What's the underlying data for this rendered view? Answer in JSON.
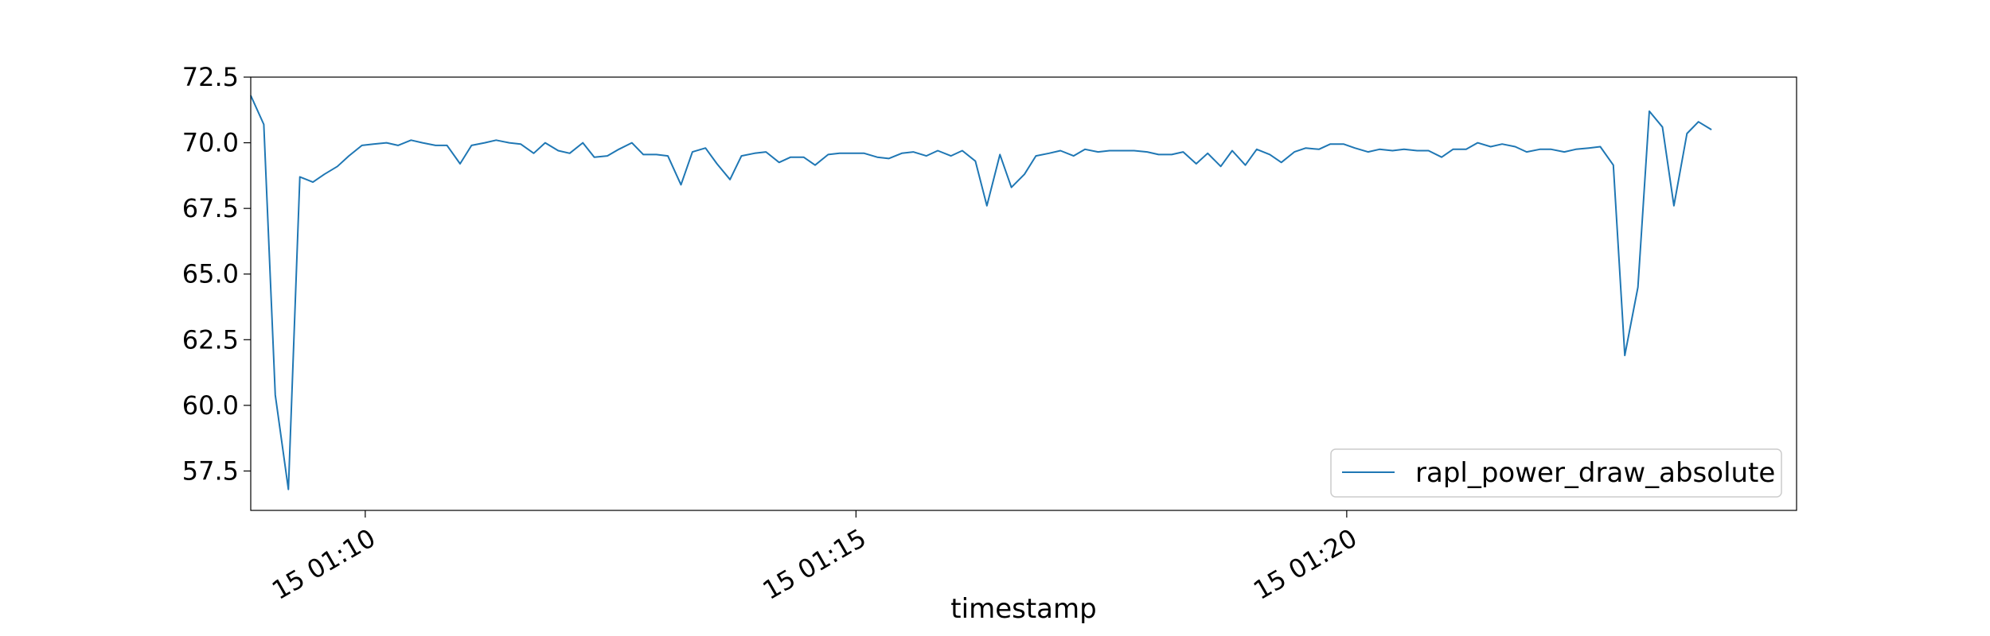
{
  "chart_data": {
    "type": "line",
    "title": "",
    "xlabel": "timestamp",
    "ylabel": "",
    "x_unit": "minutes",
    "x_range": [
      "01:08:50",
      "01:24:35"
    ],
    "ylim": [
      56.0,
      72.5
    ],
    "y_ticks": [
      57.5,
      60.0,
      62.5,
      65.0,
      67.5,
      70.0,
      72.5
    ],
    "y_tick_labels": [
      "57.5",
      "60.0",
      "62.5",
      "65.0",
      "67.5",
      "70.0",
      "72.5"
    ],
    "x_ticks": [
      "01:10:00",
      "01:15:00",
      "01:20:00"
    ],
    "x_tick_labels": [
      "15 01:10",
      "15 01:15",
      "15 01:20"
    ],
    "grid": false,
    "legend_position": "lower-right",
    "series": [
      {
        "name": "rapl_power_draw_absolute",
        "color": "#1f77b4",
        "points": [
          [
            "01:08:50",
            71.8
          ],
          [
            "01:08:58",
            70.7
          ],
          [
            "01:09:05",
            60.4
          ],
          [
            "01:09:13",
            56.8
          ],
          [
            "01:09:20",
            68.7
          ],
          [
            "01:09:28",
            68.5
          ],
          [
            "01:09:35",
            68.8
          ],
          [
            "01:09:43",
            69.1
          ],
          [
            "01:09:50",
            69.5
          ],
          [
            "01:09:58",
            69.9
          ],
          [
            "01:10:05",
            69.95
          ],
          [
            "01:10:13",
            70.0
          ],
          [
            "01:10:20",
            69.9
          ],
          [
            "01:10:28",
            70.1
          ],
          [
            "01:10:35",
            70.0
          ],
          [
            "01:10:43",
            69.9
          ],
          [
            "01:10:50",
            69.9
          ],
          [
            "01:10:58",
            69.2
          ],
          [
            "01:11:05",
            69.9
          ],
          [
            "01:11:13",
            70.0
          ],
          [
            "01:11:20",
            70.1
          ],
          [
            "01:11:28",
            70.0
          ],
          [
            "01:11:35",
            69.95
          ],
          [
            "01:11:43",
            69.6
          ],
          [
            "01:11:50",
            70.0
          ],
          [
            "01:11:58",
            69.7
          ],
          [
            "01:12:05",
            69.6
          ],
          [
            "01:12:13",
            70.0
          ],
          [
            "01:12:20",
            69.45
          ],
          [
            "01:12:28",
            69.5
          ],
          [
            "01:12:35",
            69.75
          ],
          [
            "01:12:43",
            70.0
          ],
          [
            "01:12:50",
            69.55
          ],
          [
            "01:12:58",
            69.55
          ],
          [
            "01:13:05",
            69.5
          ],
          [
            "01:13:13",
            68.4
          ],
          [
            "01:13:20",
            69.65
          ],
          [
            "01:13:28",
            69.8
          ],
          [
            "01:13:35",
            69.2
          ],
          [
            "01:13:43",
            68.6
          ],
          [
            "01:13:50",
            69.5
          ],
          [
            "01:13:58",
            69.6
          ],
          [
            "01:14:05",
            69.65
          ],
          [
            "01:14:13",
            69.25
          ],
          [
            "01:14:20",
            69.45
          ],
          [
            "01:14:28",
            69.45
          ],
          [
            "01:14:35",
            69.15
          ],
          [
            "01:14:43",
            69.55
          ],
          [
            "01:14:50",
            69.6
          ],
          [
            "01:14:58",
            69.6
          ],
          [
            "01:15:05",
            69.6
          ],
          [
            "01:15:13",
            69.45
          ],
          [
            "01:15:20",
            69.4
          ],
          [
            "01:15:28",
            69.6
          ],
          [
            "01:15:35",
            69.65
          ],
          [
            "01:15:43",
            69.5
          ],
          [
            "01:15:50",
            69.7
          ],
          [
            "01:15:58",
            69.5
          ],
          [
            "01:16:05",
            69.7
          ],
          [
            "01:16:13",
            69.3
          ],
          [
            "01:16:20",
            67.6
          ],
          [
            "01:16:28",
            69.55
          ],
          [
            "01:16:35",
            68.3
          ],
          [
            "01:16:43",
            68.8
          ],
          [
            "01:16:50",
            69.5
          ],
          [
            "01:16:58",
            69.6
          ],
          [
            "01:17:05",
            69.7
          ],
          [
            "01:17:13",
            69.5
          ],
          [
            "01:17:20",
            69.75
          ],
          [
            "01:17:28",
            69.65
          ],
          [
            "01:17:35",
            69.7
          ],
          [
            "01:17:43",
            69.7
          ],
          [
            "01:17:50",
            69.7
          ],
          [
            "01:17:58",
            69.65
          ],
          [
            "01:18:05",
            69.55
          ],
          [
            "01:18:13",
            69.55
          ],
          [
            "01:18:20",
            69.65
          ],
          [
            "01:18:28",
            69.2
          ],
          [
            "01:18:35",
            69.6
          ],
          [
            "01:18:43",
            69.1
          ],
          [
            "01:18:50",
            69.7
          ],
          [
            "01:18:58",
            69.15
          ],
          [
            "01:19:05",
            69.75
          ],
          [
            "01:19:13",
            69.55
          ],
          [
            "01:19:20",
            69.25
          ],
          [
            "01:19:28",
            69.65
          ],
          [
            "01:19:35",
            69.8
          ],
          [
            "01:19:43",
            69.75
          ],
          [
            "01:19:50",
            69.95
          ],
          [
            "01:19:58",
            69.95
          ],
          [
            "01:20:05",
            69.8
          ],
          [
            "01:20:13",
            69.65
          ],
          [
            "01:20:20",
            69.75
          ],
          [
            "01:20:28",
            69.7
          ],
          [
            "01:20:35",
            69.75
          ],
          [
            "01:20:43",
            69.7
          ],
          [
            "01:20:50",
            69.7
          ],
          [
            "01:20:58",
            69.45
          ],
          [
            "01:21:05",
            69.75
          ],
          [
            "01:21:13",
            69.75
          ],
          [
            "01:21:20",
            70.0
          ],
          [
            "01:21:28",
            69.85
          ],
          [
            "01:21:35",
            69.95
          ],
          [
            "01:21:43",
            69.85
          ],
          [
            "01:21:50",
            69.65
          ],
          [
            "01:21:58",
            69.75
          ],
          [
            "01:22:05",
            69.75
          ],
          [
            "01:22:13",
            69.65
          ],
          [
            "01:22:20",
            69.75
          ],
          [
            "01:22:28",
            69.8
          ],
          [
            "01:22:35",
            69.85
          ],
          [
            "01:22:43",
            69.15
          ],
          [
            "01:22:50",
            61.9
          ],
          [
            "01:22:58",
            64.5
          ],
          [
            "01:23:05",
            71.2
          ],
          [
            "01:23:13",
            70.6
          ],
          [
            "01:23:20",
            67.6
          ],
          [
            "01:23:28",
            70.35
          ],
          [
            "01:23:35",
            70.8
          ],
          [
            "01:23:43",
            70.5
          ]
        ]
      }
    ]
  }
}
